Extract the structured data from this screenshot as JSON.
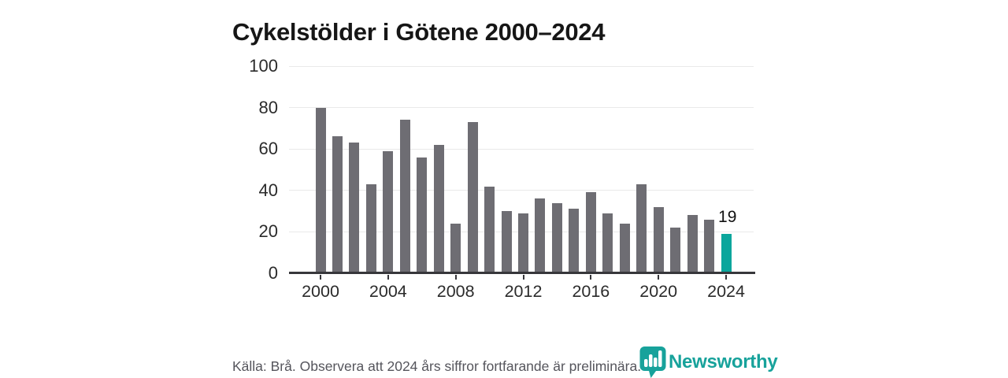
{
  "header": {
    "title": "Cykelstölder i Götene 2000–2024"
  },
  "chart_data": {
    "type": "bar",
    "title": "Cykelstölder i Götene 2000–2024",
    "x": [
      2000,
      2001,
      2002,
      2003,
      2004,
      2005,
      2006,
      2007,
      2008,
      2009,
      2010,
      2011,
      2012,
      2013,
      2014,
      2015,
      2016,
      2017,
      2018,
      2019,
      2020,
      2021,
      2022,
      2023,
      2024
    ],
    "values": [
      80,
      66,
      63,
      43,
      59,
      74,
      56,
      62,
      24,
      73,
      42,
      30,
      29,
      36,
      34,
      31,
      39,
      29,
      24,
      43,
      32,
      22,
      28,
      26,
      19
    ],
    "ylim": [
      0,
      100
    ],
    "yticks": [
      0,
      20,
      40,
      60,
      80,
      100
    ],
    "xticks": [
      2000,
      2004,
      2008,
      2012,
      2016,
      2020,
      2024
    ],
    "grid": true,
    "legend": false,
    "bar_color": "#6E6D73",
    "highlight": {
      "year": 2024,
      "color": "#0BA69C",
      "label": "19"
    }
  },
  "footer": {
    "source_note": "Källa: Brå. Observera att 2024 års siffror fortfarande är preliminära.",
    "brand": {
      "name": "Newsworthy",
      "color": "#17A29B",
      "icon": "newsworthy-pin-bar-chart-icon"
    }
  }
}
